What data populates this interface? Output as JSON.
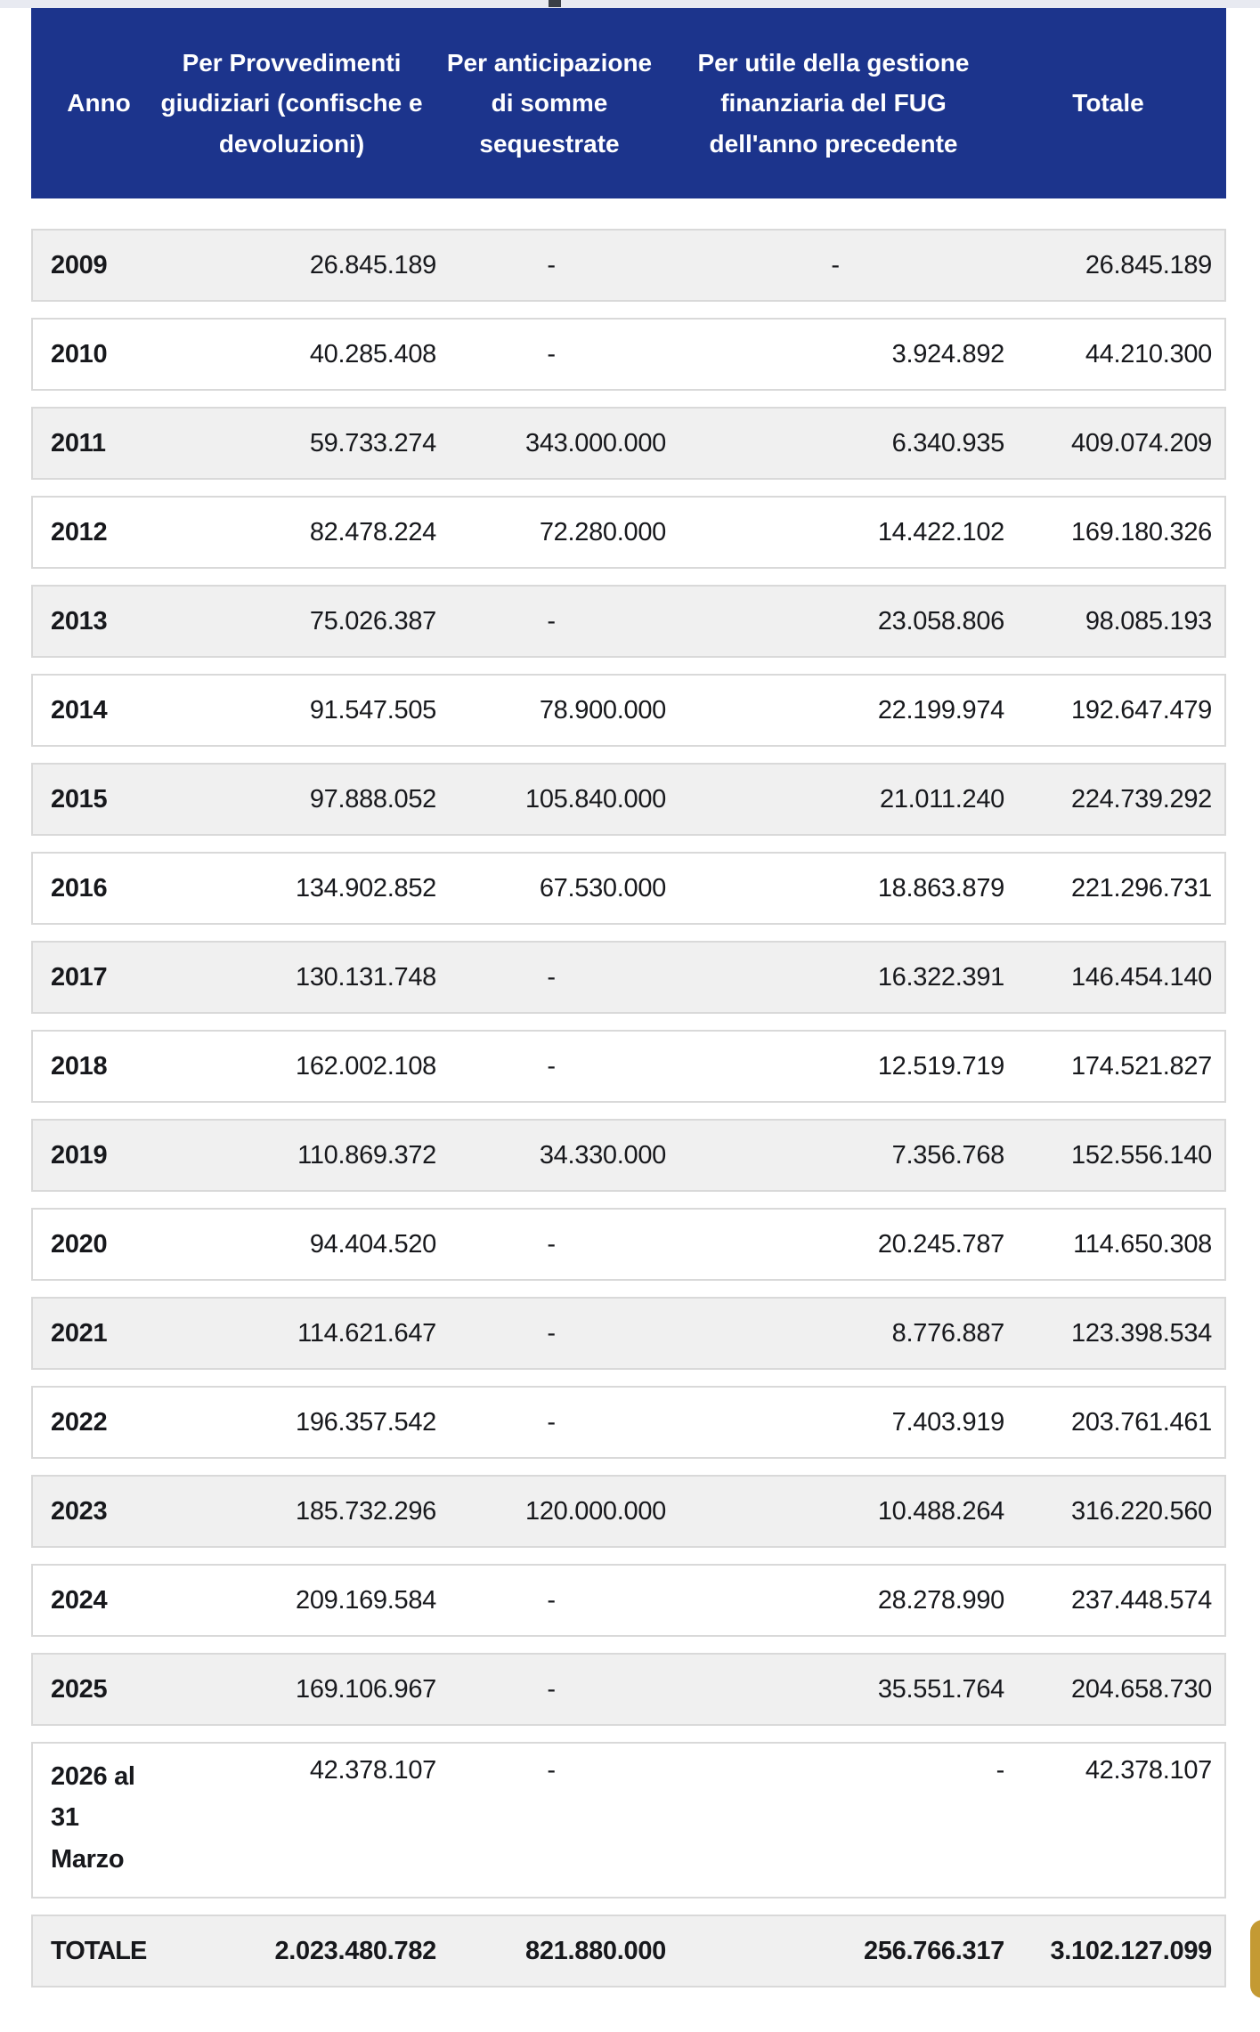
{
  "table": {
    "columns": [
      "Anno",
      "Per Provvedimenti giudiziari (confische e devoluzioni)",
      "Per anticipazione di somme sequestrate",
      "Per utile della gestione finanziaria del FUG dell'anno precedente",
      "Totale"
    ],
    "rows": [
      {
        "year": "2009",
        "c1": "26.845.189",
        "c2": "-",
        "c3": "-",
        "total": "26.845.189"
      },
      {
        "year": "2010",
        "c1": "40.285.408",
        "c2": "-",
        "c3": "3.924.892",
        "total": "44.210.300"
      },
      {
        "year": "2011",
        "c1": "59.733.274",
        "c2": "343.000.000",
        "c3": "6.340.935",
        "total": "409.074.209"
      },
      {
        "year": "2012",
        "c1": "82.478.224",
        "c2": "72.280.000",
        "c3": "14.422.102",
        "total": "169.180.326"
      },
      {
        "year": "2013",
        "c1": "75.026.387",
        "c2": "-",
        "c3": "23.058.806",
        "total": "98.085.193"
      },
      {
        "year": "2014",
        "c1": "91.547.505",
        "c2": "78.900.000",
        "c3": "22.199.974",
        "total": "192.647.479"
      },
      {
        "year": "2015",
        "c1": "97.888.052",
        "c2": "105.840.000",
        "c3": "21.011.240",
        "total": "224.739.292"
      },
      {
        "year": "2016",
        "c1": "134.902.852",
        "c2": "67.530.000",
        "c3": "18.863.879",
        "total": "221.296.731"
      },
      {
        "year": "2017",
        "c1": "130.131.748",
        "c2": "-",
        "c3": "16.322.391",
        "total": "146.454.140"
      },
      {
        "year": "2018",
        "c1": "162.002.108",
        "c2": "-",
        "c3": "12.519.719",
        "total": "174.521.827"
      },
      {
        "year": "2019",
        "c1": "110.869.372",
        "c2": "34.330.000",
        "c3": "7.356.768",
        "total": "152.556.140"
      },
      {
        "year": "2020",
        "c1": "94.404.520",
        "c2": "-",
        "c3": "20.245.787",
        "total": "114.650.308"
      },
      {
        "year": "2021",
        "c1": "114.621.647",
        "c2": "-",
        "c3": "8.776.887",
        "total": "123.398.534"
      },
      {
        "year": "2022",
        "c1": "196.357.542",
        "c2": "-",
        "c3": "7.403.919",
        "total": "203.761.461"
      },
      {
        "year": "2023",
        "c1": "185.732.296",
        "c2": "120.000.000",
        "c3": "10.488.264",
        "total": "316.220.560"
      },
      {
        "year": "2024",
        "c1": "209.169.584",
        "c2": "-",
        "c3": "28.278.990",
        "total": "237.448.574"
      },
      {
        "year": "2025",
        "c1": "169.106.967",
        "c2": "-",
        "c3": "35.551.764",
        "total": "204.658.730"
      },
      {
        "year": "2026 al\n31\nMarzo",
        "c1": "42.378.107",
        "c2": "-",
        "c3": "-",
        "c3_align": "right",
        "total": "42.378.107"
      },
      {
        "year": "TOTALE",
        "is_total": true,
        "c1": "2.023.480.782",
        "c2": "821.880.000",
        "c3": "256.766.317",
        "total": "3.102.127.099"
      }
    ]
  },
  "colors": {
    "header_bg": "#1c348c",
    "header_text": "#ffffff",
    "row_shaded_bg": "#f0f0f0",
    "row_border": "#d9d9d9",
    "body_text": "#17181c",
    "accent_gold": "#c49a33",
    "top_strip": "#e8eaf1"
  }
}
